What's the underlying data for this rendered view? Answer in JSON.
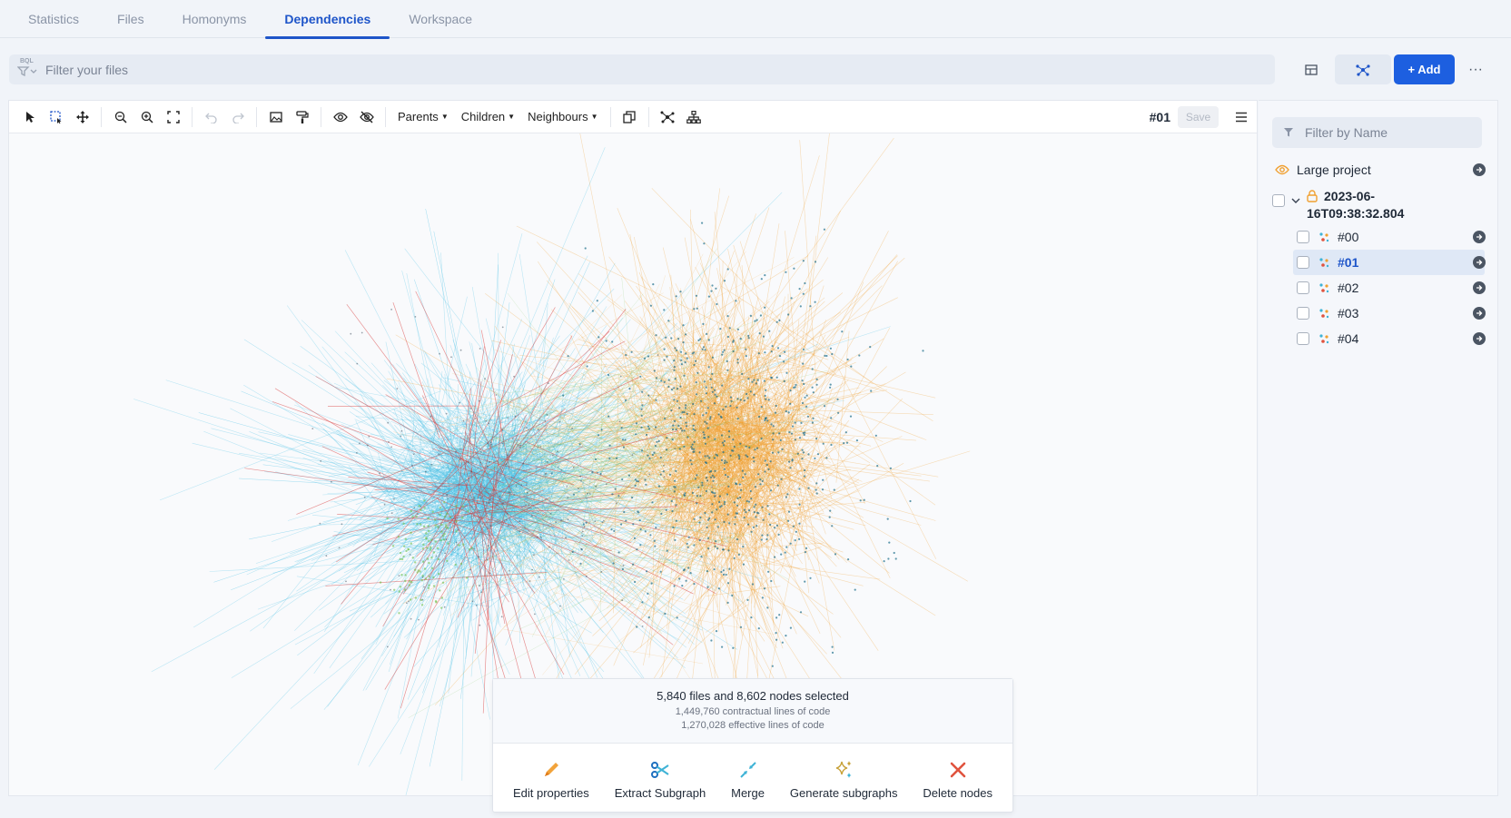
{
  "tabs": [
    {
      "label": "Statistics",
      "active": false
    },
    {
      "label": "Files",
      "active": false
    },
    {
      "label": "Homonyms",
      "active": false
    },
    {
      "label": "Dependencies",
      "active": true
    },
    {
      "label": "Workspace",
      "active": false
    }
  ],
  "filter": {
    "tag": "BQL",
    "placeholder": "Filter your files"
  },
  "top_actions": {
    "add_label": "+ Add",
    "more_label": "···"
  },
  "toolbar": {
    "dropdowns": [
      "Parents",
      "Children",
      "Neighbours"
    ],
    "graph_id": "#01",
    "save_label": "Save"
  },
  "selection": {
    "title": "5,840 files and 8,602 nodes selected",
    "contractual": "1,449,760 contractual lines of code",
    "effective": "1,270,028 effective lines of code",
    "actions": [
      {
        "label": "Edit properties",
        "icon": "pencil-icon"
      },
      {
        "label": "Extract Subgraph",
        "icon": "scissors-icon"
      },
      {
        "label": "Merge",
        "icon": "merge-arrows-icon"
      },
      {
        "label": "Generate subgraphs",
        "icon": "sparkles-icon"
      },
      {
        "label": "Delete nodes",
        "icon": "x-icon"
      }
    ]
  },
  "side": {
    "filter_placeholder": "Filter by Name",
    "project_label": "Large project",
    "snapshot_label": "2023-06-16T09:38:32.804",
    "graphs": [
      {
        "label": "#00",
        "selected": false
      },
      {
        "label": "#01",
        "selected": true
      },
      {
        "label": "#02",
        "selected": false
      },
      {
        "label": "#03",
        "selected": false
      },
      {
        "label": "#04",
        "selected": false
      }
    ]
  },
  "colors": {
    "accent": "#1e55c9",
    "cluster_blue": "#45c0e6",
    "cluster_orange": "#f0a030",
    "edge_red": "#d93a3a",
    "edge_green": "#6cc04a"
  }
}
